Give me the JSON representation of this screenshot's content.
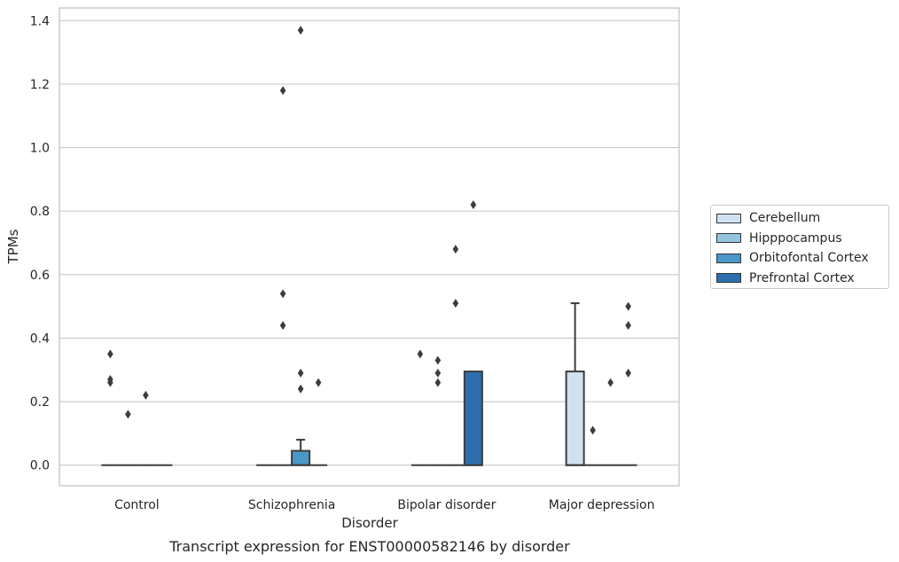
{
  "chart_data": {
    "type": "box",
    "title": "",
    "caption": "Transcript expression for ENST00000582146 by disorder",
    "xlabel": "Disorder",
    "ylabel": "TPMs",
    "ylim": [
      -0.065,
      1.44
    ],
    "yticks": [
      "0.0",
      "0.2",
      "0.4",
      "0.6",
      "0.8",
      "1.0",
      "1.2",
      "1.4"
    ],
    "ytick_values": [
      0,
      0.2,
      0.4,
      0.6,
      0.8,
      1.0,
      1.2,
      1.4
    ],
    "grid": "horizontal",
    "legend_position": "right",
    "categories": [
      "Control",
      "Schizophrenia",
      "Bipolar disorder",
      "Major depression"
    ],
    "series": [
      {
        "name": "Cerebellum",
        "color": "#d0e1f2",
        "boxes": [
          {
            "q1": 0,
            "median": 0,
            "q3": 0,
            "whislo": 0,
            "whishi": 0,
            "fliers": [
              0.35,
              0.27,
              0.26
            ]
          },
          {
            "q1": 0,
            "median": 0,
            "q3": 0,
            "whislo": 0,
            "whishi": 0,
            "fliers": []
          },
          {
            "q1": 0,
            "median": 0,
            "q3": 0,
            "whislo": 0,
            "whishi": 0,
            "fliers": [
              0.35
            ]
          },
          {
            "q1": 0,
            "median": 0,
            "q3": 0.295,
            "whislo": 0,
            "whishi": 0.51,
            "fliers": []
          }
        ]
      },
      {
        "name": "Hipppocampus",
        "color": "#94c4df",
        "boxes": [
          {
            "q1": 0,
            "median": 0,
            "q3": 0,
            "whislo": 0,
            "whishi": 0,
            "fliers": [
              0.16
            ]
          },
          {
            "q1": 0,
            "median": 0,
            "q3": 0,
            "whislo": 0,
            "whishi": 0,
            "fliers": [
              1.18,
              0.54,
              0.44
            ]
          },
          {
            "q1": 0,
            "median": 0,
            "q3": 0,
            "whislo": 0,
            "whishi": 0,
            "fliers": [
              0.33,
              0.29,
              0.26
            ]
          },
          {
            "q1": 0,
            "median": 0,
            "q3": 0,
            "whislo": 0,
            "whishi": 0,
            "fliers": [
              0.11
            ]
          }
        ]
      },
      {
        "name": "Orbitofontal Cortex",
        "color": "#4a98c9",
        "boxes": [
          {
            "q1": 0,
            "median": 0,
            "q3": 0,
            "whislo": 0,
            "whishi": 0,
            "fliers": [
              0.22
            ]
          },
          {
            "q1": 0,
            "median": 0,
            "q3": 0.045,
            "whislo": 0,
            "whishi": 0.08,
            "fliers": [
              1.37,
              0.29,
              0.24
            ]
          },
          {
            "q1": 0,
            "median": 0,
            "q3": 0,
            "whislo": 0,
            "whishi": 0,
            "fliers": [
              0.68,
              0.51
            ]
          },
          {
            "q1": 0,
            "median": 0,
            "q3": 0,
            "whislo": 0,
            "whishi": 0,
            "fliers": [
              0.26
            ]
          }
        ]
      },
      {
        "name": "Prefrontal Cortex",
        "color": "#2d6fae",
        "boxes": [
          {
            "q1": 0,
            "median": 0,
            "q3": 0,
            "whislo": 0,
            "whishi": 0,
            "fliers": []
          },
          {
            "q1": 0,
            "median": 0,
            "q3": 0,
            "whislo": 0,
            "whishi": 0,
            "fliers": [
              0.26
            ]
          },
          {
            "q1": 0,
            "median": 0,
            "q3": 0.295,
            "whislo": 0,
            "whishi": 0.295,
            "fliers": [
              0.82
            ]
          },
          {
            "q1": 0,
            "median": 0,
            "q3": 0,
            "whislo": 0,
            "whishi": 0,
            "fliers": [
              0.5,
              0.44,
              0.29
            ]
          }
        ]
      }
    ]
  }
}
